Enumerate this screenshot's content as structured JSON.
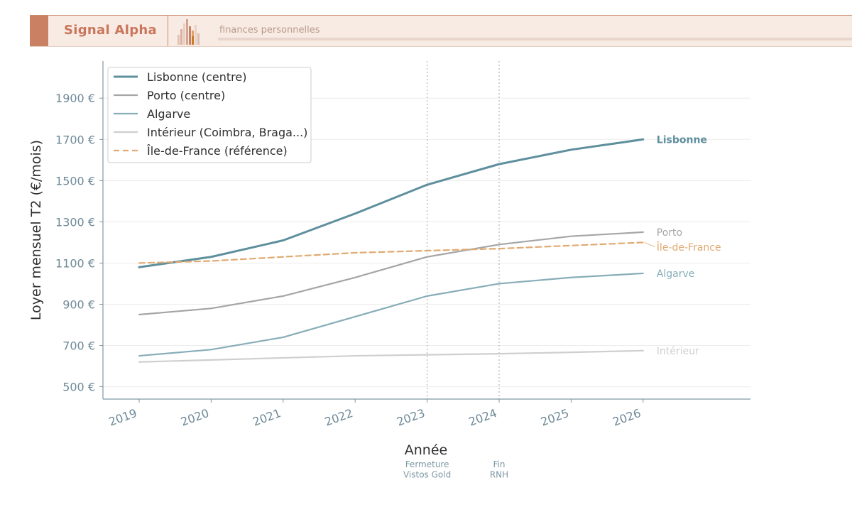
{
  "banner": {
    "brand": "Signal Alpha",
    "tagline": "finances personnelles",
    "accent_color": "#c98063"
  },
  "chart_data": {
    "type": "line",
    "title": "",
    "xlabel": "Année",
    "ylabel": "Loyer mensuel T2 (€/mois)",
    "x": [
      "2019",
      "2020",
      "2021",
      "2022",
      "2023",
      "2024",
      "2025",
      "2026"
    ],
    "ylim": [
      440,
      2080
    ],
    "yticks": [
      500,
      700,
      900,
      1100,
      1300,
      1500,
      1700,
      1900
    ],
    "ytick_labels": [
      "500 €",
      "700 €",
      "900 €",
      "1100 €",
      "1300 €",
      "1500 €",
      "1700 €",
      "1900 €"
    ],
    "grid": true,
    "legend_position": "top-left",
    "series": [
      {
        "name": "Lisbonne (centre)",
        "end_label": "Lisbonne",
        "color": "#5e8f9d",
        "style": "solid-thick",
        "values": [
          1080,
          1130,
          1210,
          1340,
          1480,
          1580,
          1650,
          1700
        ]
      },
      {
        "name": "Porto (centre)",
        "end_label": "Porto",
        "color": "#a5a5a5",
        "style": "solid",
        "values": [
          850,
          880,
          940,
          1030,
          1130,
          1190,
          1230,
          1250
        ]
      },
      {
        "name": "Algarve",
        "end_label": "Algarve",
        "color": "#86adb8",
        "style": "solid",
        "values": [
          650,
          680,
          740,
          840,
          940,
          1000,
          1030,
          1050
        ]
      },
      {
        "name": "Intérieur (Coimbra, Braga...)",
        "end_label": "Intérieur",
        "color": "#cfcfcf",
        "style": "solid",
        "values": [
          620,
          630,
          640,
          650,
          655,
          660,
          667,
          675
        ]
      },
      {
        "name": "Île-de-France (référence)",
        "end_label": "Île-de-France",
        "color": "#e0aa72",
        "style": "dashed",
        "values": [
          1100,
          1110,
          1130,
          1150,
          1160,
          1170,
          1185,
          1200
        ]
      }
    ],
    "annotations": [
      {
        "x": "2023",
        "label_lines": [
          "Fermeture",
          "Vistos Gold"
        ]
      },
      {
        "x": "2024",
        "label_lines": [
          "Fin",
          "RNH"
        ]
      }
    ]
  }
}
